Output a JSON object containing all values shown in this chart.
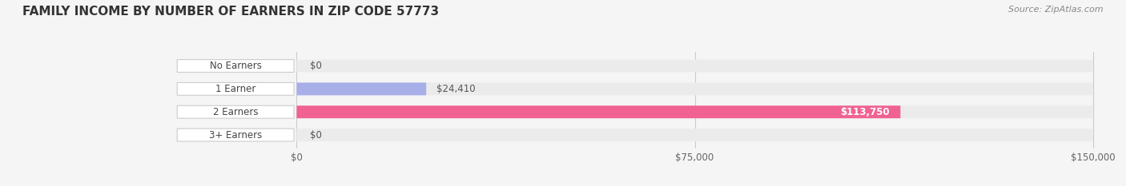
{
  "title": "FAMILY INCOME BY NUMBER OF EARNERS IN ZIP CODE 57773",
  "source": "Source: ZipAtlas.com",
  "categories": [
    "No Earners",
    "1 Earner",
    "2 Earners",
    "3+ Earners"
  ],
  "values": [
    0,
    24410,
    113750,
    0
  ],
  "bar_colors": [
    "#5ecbc8",
    "#a8aee8",
    "#f06292",
    "#f7c998"
  ],
  "background_color": "#f5f5f5",
  "bar_bg_color": "#ebebeb",
  "label_bg_color": "#ffffff",
  "xlim": [
    0,
    150000
  ],
  "xticks": [
    0,
    75000,
    150000
  ],
  "xtick_labels": [
    "$0",
    "$75,000",
    "$150,000"
  ],
  "value_labels": [
    "$0",
    "$24,410",
    "$113,750",
    "$0"
  ],
  "title_fontsize": 11,
  "source_fontsize": 8,
  "bar_height": 0.55,
  "figsize": [
    14.06,
    2.33
  ],
  "dpi": 100
}
